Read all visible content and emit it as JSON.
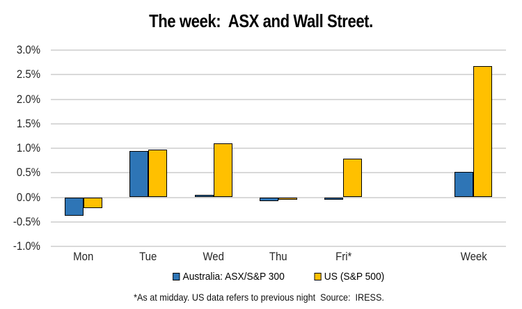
{
  "title": "The week:  ASX and Wall Street.",
  "footnote": "*As at midday. US data refers to previous night  Source:  IRESS.",
  "chart_data": {
    "type": "bar",
    "title": "The week:  ASX and Wall Street.",
    "xlabel": "",
    "ylabel": "",
    "ylim": [
      -1.0,
      3.0
    ],
    "ytick_step": 0.5,
    "grid": true,
    "grid_color": "#D9D9D9",
    "bar_border_color": "#000000",
    "legend_position": "bottom",
    "value_unit": "percent",
    "categories": [
      "Mon",
      "Tue",
      "Wed",
      "Thu",
      "Fri*",
      "",
      "Week"
    ],
    "series": [
      {
        "name": "Australia: ASX/S&P 300",
        "color": "#2E75B6",
        "values": [
          -0.37,
          0.95,
          0.05,
          -0.08,
          -0.05,
          null,
          0.52
        ]
      },
      {
        "name": "US (S&P 500)",
        "color": "#FFC000",
        "values": [
          -0.22,
          0.97,
          1.1,
          -0.03,
          0.79,
          null,
          2.67
        ]
      }
    ],
    "yticks": [
      {
        "label": "3.0%",
        "value": 3.0
      },
      {
        "label": "2.5%",
        "value": 2.5
      },
      {
        "label": "2.0%",
        "value": 2.0
      },
      {
        "label": "1.5%",
        "value": 1.5
      },
      {
        "label": "1.0%",
        "value": 1.0
      },
      {
        "label": "0.5%",
        "value": 0.5
      },
      {
        "label": "0.0%",
        "value": 0.0
      },
      {
        "label": "-0.5%",
        "value": -0.5
      },
      {
        "label": "-1.0%",
        "value": -1.0
      }
    ]
  }
}
